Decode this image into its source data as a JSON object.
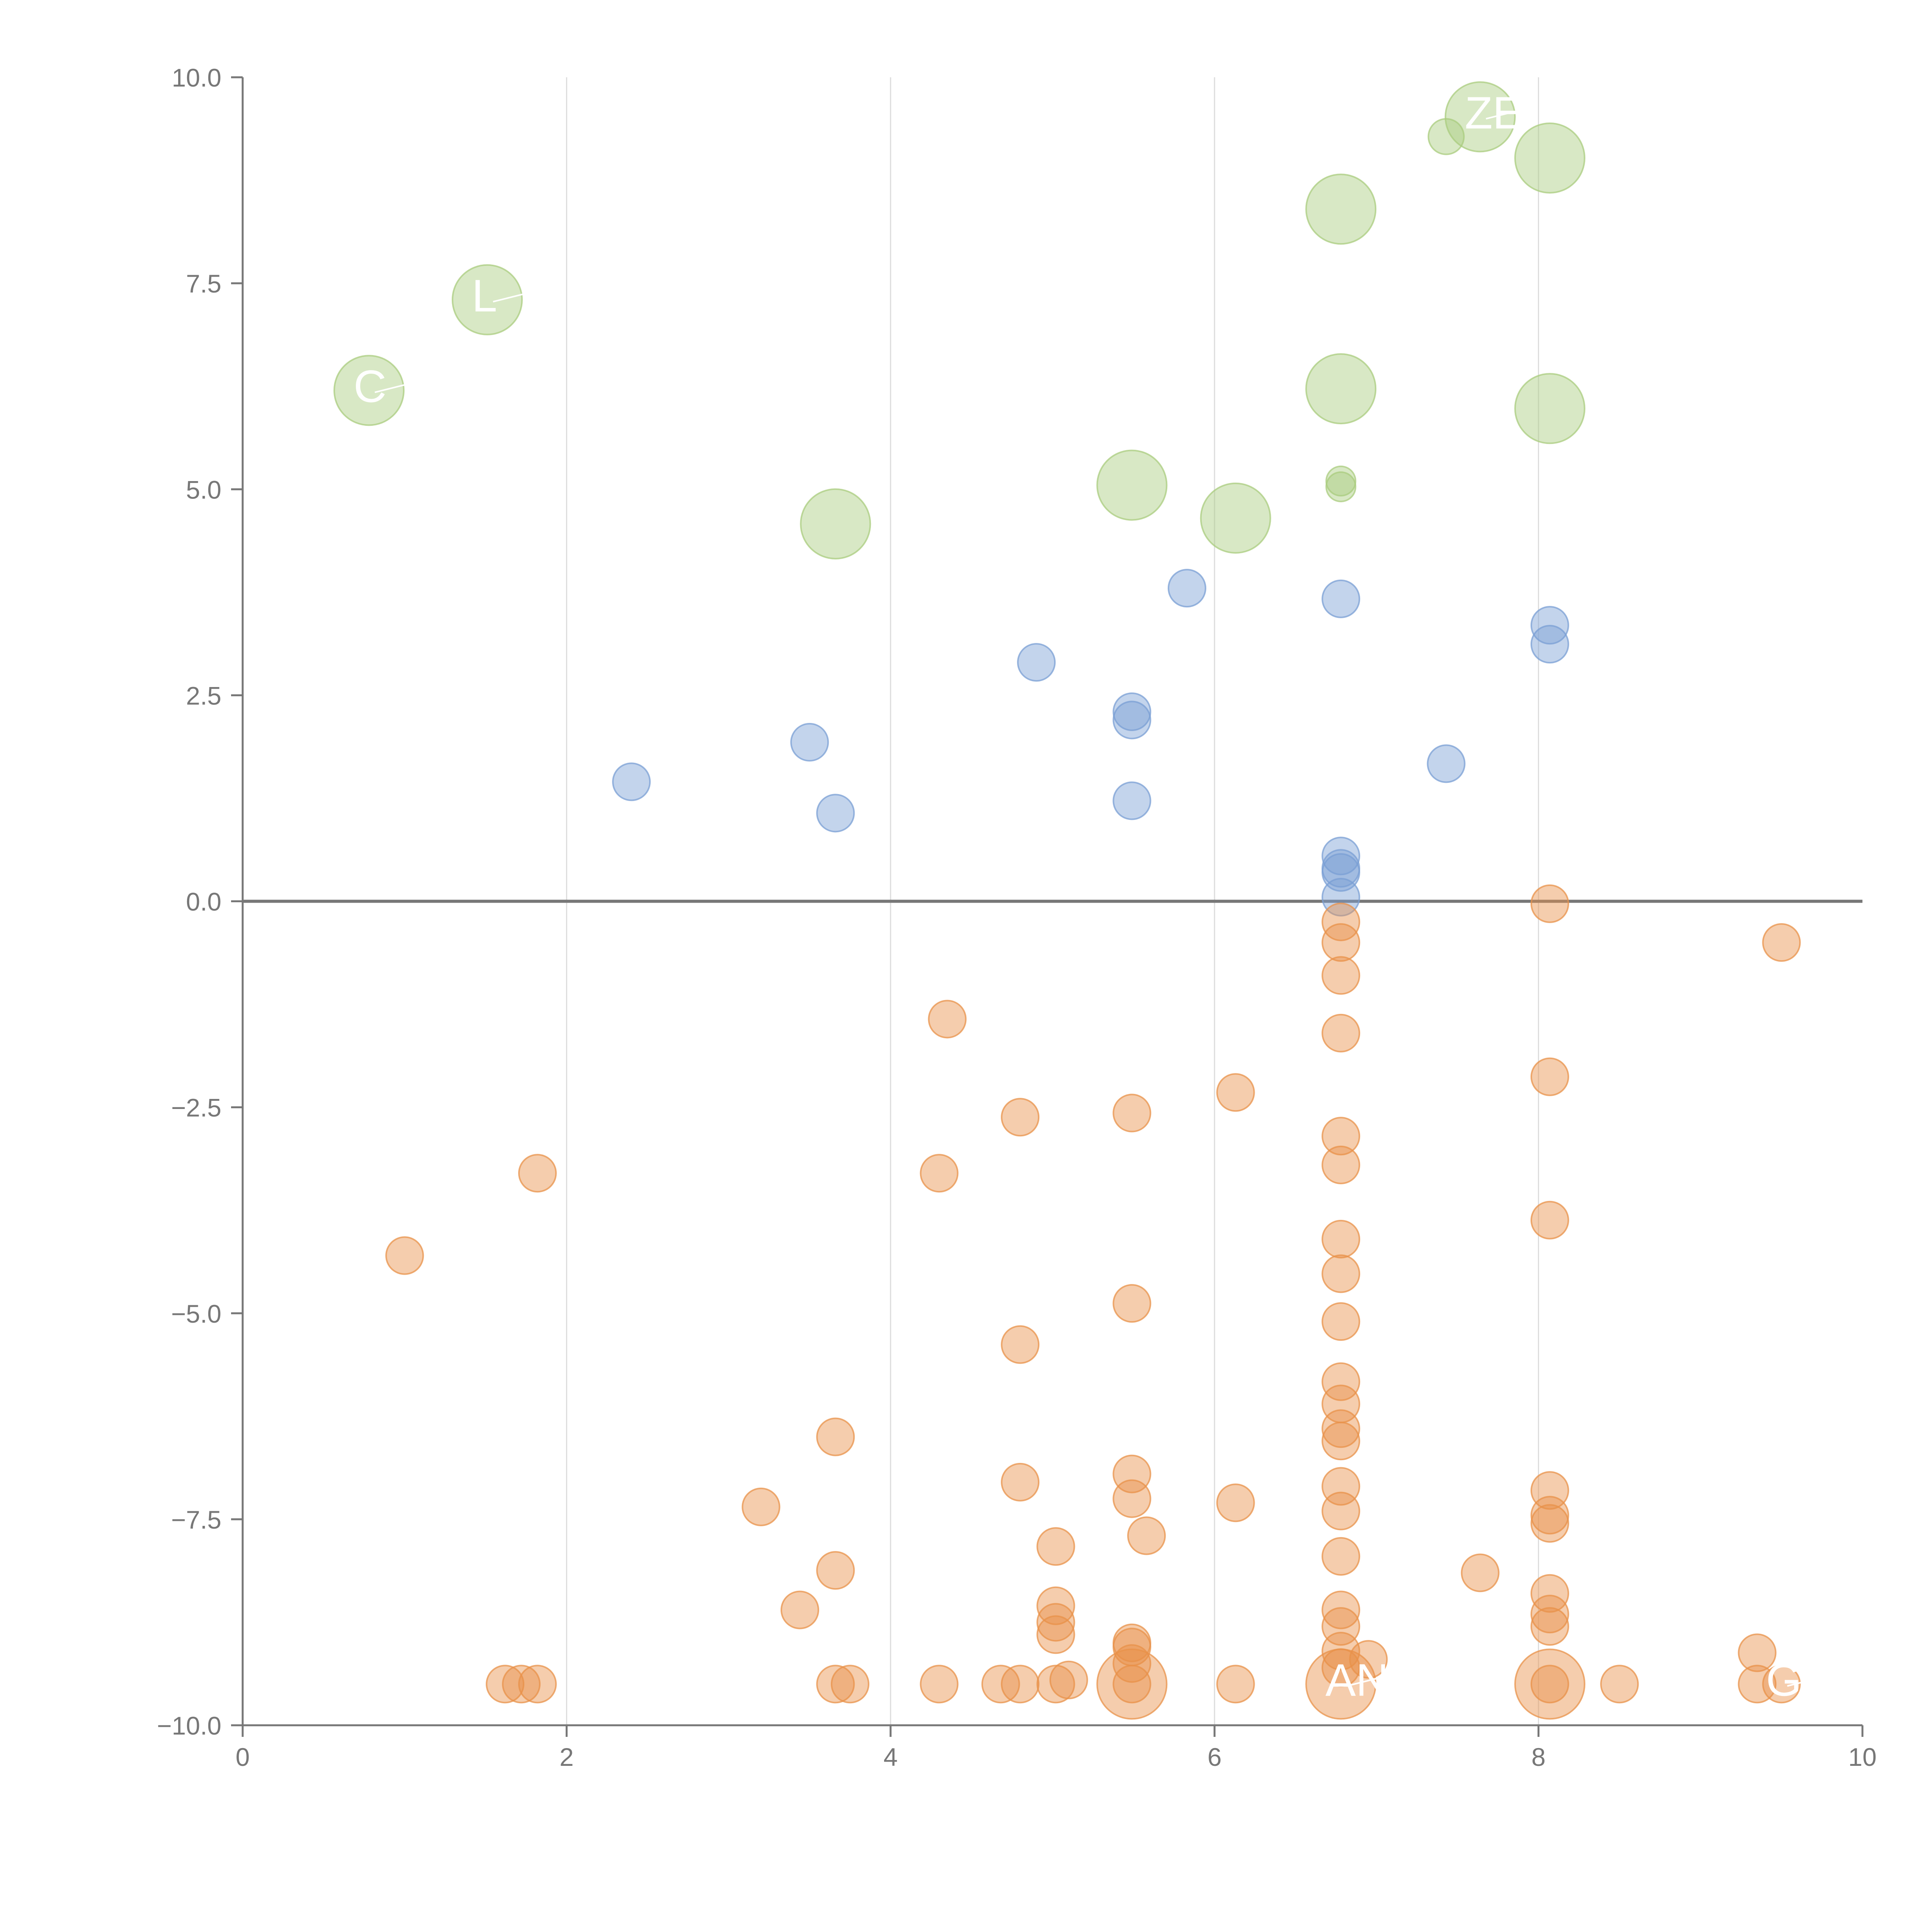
{
  "chart_data": {
    "type": "scatter",
    "title": "",
    "xlabel": "",
    "ylabel": "",
    "xlim": [
      0,
      10
    ],
    "ylim": [
      -10,
      10
    ],
    "x_ticks": [
      0,
      2,
      4,
      6,
      8,
      10
    ],
    "x_tick_labels": [
      "0",
      "2",
      "4",
      "6",
      "8",
      "10"
    ],
    "y_ticks": [
      -10,
      -7.5,
      -5,
      -2.5,
      0,
      2.5,
      5,
      7.5,
      10
    ],
    "y_tick_labels": [
      "−10.0",
      "−7.5",
      "−5.0",
      "−2.5",
      "0.0",
      "2.5",
      "5.0",
      "7.5",
      "10.0"
    ],
    "grid": "vertical",
    "zero_line": true,
    "colors": {
      "green": "#a9cc7e",
      "blue": "#7a9fd4",
      "orange": "#e8914a",
      "axis": "#777777",
      "grid": "#dcdcdc",
      "zero": "#777777"
    },
    "series": [
      {
        "name": "green",
        "color": "#a9cc7e",
        "points": [
          {
            "x": 0.78,
            "y": 6.2,
            "s": 2,
            "label": "C"
          },
          {
            "x": 1.51,
            "y": 7.3,
            "s": 2,
            "label": "L"
          },
          {
            "x": 3.66,
            "y": 4.58,
            "s": 2,
            "label": ""
          },
          {
            "x": 5.49,
            "y": 5.05,
            "s": 2,
            "label": ""
          },
          {
            "x": 6.13,
            "y": 4.65,
            "s": 2,
            "label": ""
          },
          {
            "x": 6.78,
            "y": 8.4,
            "s": 2,
            "label": ""
          },
          {
            "x": 6.78,
            "y": 6.22,
            "s": 2,
            "label": ""
          },
          {
            "x": 6.78,
            "y": 5.1,
            "s": 0.5,
            "label": ""
          },
          {
            "x": 6.78,
            "y": 5.03,
            "s": 0.5,
            "label": ""
          },
          {
            "x": 7.43,
            "y": 9.28,
            "s": 0.6,
            "label": ""
          },
          {
            "x": 7.64,
            "y": 9.52,
            "s": 2,
            "label": "ZE"
          },
          {
            "x": 8.07,
            "y": 9.02,
            "s": 2,
            "label": ""
          },
          {
            "x": 8.07,
            "y": 5.98,
            "s": 2,
            "label": ""
          }
        ]
      },
      {
        "name": "blue",
        "color": "#7a9fd4",
        "points": [
          {
            "x": 2.4,
            "y": 1.45,
            "s": 1
          },
          {
            "x": 3.5,
            "y": 1.93,
            "s": 1
          },
          {
            "x": 3.66,
            "y": 1.07,
            "s": 1
          },
          {
            "x": 4.9,
            "y": 2.9,
            "s": 1
          },
          {
            "x": 5.49,
            "y": 2.3,
            "s": 1
          },
          {
            "x": 5.49,
            "y": 2.2,
            "s": 1
          },
          {
            "x": 5.49,
            "y": 1.22,
            "s": 1
          },
          {
            "x": 5.83,
            "y": 3.8,
            "s": 1
          },
          {
            "x": 6.78,
            "y": 3.67,
            "s": 1
          },
          {
            "x": 6.78,
            "y": 0.55,
            "s": 1
          },
          {
            "x": 6.78,
            "y": 0.4,
            "s": 1
          },
          {
            "x": 6.78,
            "y": 0.35,
            "s": 1
          },
          {
            "x": 6.78,
            "y": 0.05,
            "s": 1
          },
          {
            "x": 7.43,
            "y": 1.67,
            "s": 1
          },
          {
            "x": 8.07,
            "y": 3.35,
            "s": 1
          },
          {
            "x": 8.07,
            "y": 3.12,
            "s": 1
          }
        ]
      },
      {
        "name": "orange",
        "color": "#e8914a",
        "points": [
          {
            "x": 1.0,
            "y": -4.3,
            "s": 1
          },
          {
            "x": 1.82,
            "y": -3.3,
            "s": 1
          },
          {
            "x": 1.62,
            "y": -9.5,
            "s": 1
          },
          {
            "x": 1.72,
            "y": -9.5,
            "s": 1
          },
          {
            "x": 1.82,
            "y": -9.5,
            "s": 1
          },
          {
            "x": 3.2,
            "y": -7.35,
            "s": 1
          },
          {
            "x": 3.44,
            "y": -8.6,
            "s": 1
          },
          {
            "x": 3.66,
            "y": -6.5,
            "s": 1
          },
          {
            "x": 3.66,
            "y": -8.12,
            "s": 1
          },
          {
            "x": 3.66,
            "y": -9.5,
            "s": 1
          },
          {
            "x": 3.75,
            "y": -9.5,
            "s": 1
          },
          {
            "x": 4.3,
            "y": -3.3,
            "s": 1
          },
          {
            "x": 4.3,
            "y": -9.5,
            "s": 1
          },
          {
            "x": 4.35,
            "y": -1.43,
            "s": 1
          },
          {
            "x": 4.68,
            "y": -9.5,
            "s": 1
          },
          {
            "x": 4.8,
            "y": -2.62,
            "s": 1
          },
          {
            "x": 4.8,
            "y": -5.38,
            "s": 1
          },
          {
            "x": 4.8,
            "y": -7.05,
            "s": 1
          },
          {
            "x": 4.8,
            "y": -9.5,
            "s": 1
          },
          {
            "x": 5.02,
            "y": -7.83,
            "s": 1
          },
          {
            "x": 5.02,
            "y": -8.55,
            "s": 1
          },
          {
            "x": 5.02,
            "y": -8.75,
            "s": 1
          },
          {
            "x": 5.02,
            "y": -8.9,
            "s": 1
          },
          {
            "x": 5.02,
            "y": -9.5,
            "s": 1
          },
          {
            "x": 5.1,
            "y": -9.45,
            "s": 1
          },
          {
            "x": 5.49,
            "y": -2.57,
            "s": 1
          },
          {
            "x": 5.49,
            "y": -4.88,
            "s": 1
          },
          {
            "x": 5.49,
            "y": -6.95,
            "s": 1
          },
          {
            "x": 5.49,
            "y": -7.25,
            "s": 1
          },
          {
            "x": 5.49,
            "y": -9.0,
            "s": 1
          },
          {
            "x": 5.49,
            "y": -9.05,
            "s": 1
          },
          {
            "x": 5.49,
            "y": -9.25,
            "s": 1
          },
          {
            "x": 5.49,
            "y": -9.5,
            "s": 1
          },
          {
            "x": 5.49,
            "y": -9.5,
            "s": 2,
            "label": ""
          },
          {
            "x": 5.58,
            "y": -7.7,
            "s": 1
          },
          {
            "x": 6.13,
            "y": -2.32,
            "s": 1
          },
          {
            "x": 6.13,
            "y": -7.3,
            "s": 1
          },
          {
            "x": 6.13,
            "y": -9.5,
            "s": 1
          },
          {
            "x": 6.78,
            "y": -0.25,
            "s": 1
          },
          {
            "x": 6.78,
            "y": -0.5,
            "s": 1
          },
          {
            "x": 6.78,
            "y": -0.9,
            "s": 1
          },
          {
            "x": 6.78,
            "y": -1.6,
            "s": 1
          },
          {
            "x": 6.78,
            "y": -2.85,
            "s": 1
          },
          {
            "x": 6.78,
            "y": -3.2,
            "s": 1
          },
          {
            "x": 6.78,
            "y": -4.1,
            "s": 1
          },
          {
            "x": 6.78,
            "y": -4.52,
            "s": 1
          },
          {
            "x": 6.78,
            "y": -5.1,
            "s": 1
          },
          {
            "x": 6.78,
            "y": -5.83,
            "s": 1
          },
          {
            "x": 6.78,
            "y": -6.1,
            "s": 1
          },
          {
            "x": 6.78,
            "y": -6.4,
            "s": 1
          },
          {
            "x": 6.78,
            "y": -6.55,
            "s": 1
          },
          {
            "x": 6.78,
            "y": -7.1,
            "s": 1
          },
          {
            "x": 6.78,
            "y": -7.4,
            "s": 1
          },
          {
            "x": 6.78,
            "y": -7.95,
            "s": 1
          },
          {
            "x": 6.78,
            "y": -8.6,
            "s": 1
          },
          {
            "x": 6.78,
            "y": -8.8,
            "s": 1
          },
          {
            "x": 6.78,
            "y": -9.1,
            "s": 1
          },
          {
            "x": 6.78,
            "y": -9.3,
            "s": 1
          },
          {
            "x": 6.78,
            "y": -9.5,
            "s": 2,
            "label": "AN"
          },
          {
            "x": 6.95,
            "y": -9.2,
            "s": 1
          },
          {
            "x": 7.64,
            "y": -8.15,
            "s": 1
          },
          {
            "x": 8.07,
            "y": -0.03,
            "s": 1
          },
          {
            "x": 8.07,
            "y": -2.13,
            "s": 1
          },
          {
            "x": 8.07,
            "y": -3.87,
            "s": 1
          },
          {
            "x": 8.07,
            "y": -7.15,
            "s": 1
          },
          {
            "x": 8.07,
            "y": -7.45,
            "s": 1
          },
          {
            "x": 8.07,
            "y": -7.55,
            "s": 1
          },
          {
            "x": 8.07,
            "y": -8.4,
            "s": 1
          },
          {
            "x": 8.07,
            "y": -8.65,
            "s": 1
          },
          {
            "x": 8.07,
            "y": -8.8,
            "s": 1
          },
          {
            "x": 8.07,
            "y": -9.5,
            "s": 1
          },
          {
            "x": 8.07,
            "y": -9.5,
            "s": 2,
            "label": ""
          },
          {
            "x": 8.5,
            "y": -9.5,
            "s": 1
          },
          {
            "x": 9.35,
            "y": -9.12,
            "s": 1
          },
          {
            "x": 9.35,
            "y": -9.5,
            "s": 1
          },
          {
            "x": 9.5,
            "y": -0.5,
            "s": 1
          },
          {
            "x": 9.5,
            "y": -9.5,
            "s": 1,
            "label": "GO"
          }
        ]
      }
    ]
  }
}
